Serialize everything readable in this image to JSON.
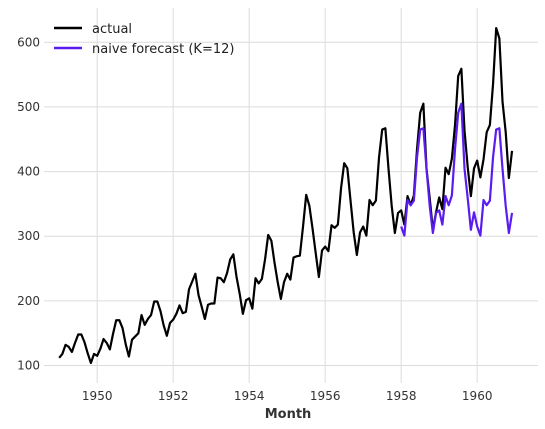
{
  "chart_data": {
    "type": "line",
    "xlabel": "Month",
    "ylabel": "",
    "grid": true,
    "legend_position": "top-left",
    "xlim": [
      1948.6,
      1961.6
    ],
    "ylim": [
      73,
      653
    ],
    "x_ticks": [
      1950,
      1952,
      1954,
      1956,
      1958,
      1960
    ],
    "y_ticks": [
      100,
      200,
      300,
      400,
      500,
      600
    ],
    "x_start": 1949.0,
    "x_step_years": 0.0833333,
    "series": [
      {
        "name": "actual",
        "color": "#000000",
        "start_index": 0,
        "values": [
          112,
          118,
          132,
          129,
          121,
          135,
          148,
          148,
          136,
          119,
          104,
          118,
          115,
          126,
          141,
          135,
          125,
          149,
          170,
          170,
          158,
          133,
          114,
          140,
          145,
          150,
          178,
          163,
          172,
          178,
          199,
          199,
          184,
          162,
          146,
          166,
          171,
          180,
          193,
          181,
          183,
          218,
          230,
          242,
          209,
          191,
          172,
          194,
          196,
          196,
          236,
          235,
          229,
          243,
          264,
          272,
          237,
          211,
          180,
          201,
          204,
          188,
          235,
          227,
          234,
          264,
          302,
          293,
          259,
          229,
          203,
          229,
          242,
          233,
          267,
          269,
          270,
          315,
          364,
          347,
          312,
          274,
          237,
          278,
          284,
          277,
          317,
          313,
          318,
          374,
          413,
          405,
          355,
          306,
          271,
          306,
          315,
          301,
          356,
          348,
          355,
          422,
          465,
          467,
          404,
          347,
          305,
          336,
          340,
          318,
          362,
          348,
          363,
          435,
          491,
          505,
          404,
          359,
          310,
          337,
          360,
          342,
          406,
          396,
          420,
          472,
          548,
          559,
          463,
          407,
          362,
          405,
          417,
          391,
          419,
          461,
          472,
          535,
          622,
          606,
          508,
          461,
          390,
          432
        ]
      },
      {
        "name": "naive forecast (K=12)",
        "color": "#5b1cf0",
        "start_index": 108,
        "values": [
          315,
          301,
          356,
          348,
          355,
          422,
          465,
          467,
          404,
          347,
          305,
          336,
          340,
          318,
          362,
          348,
          363,
          435,
          491,
          505,
          404,
          359,
          310,
          337,
          315,
          301,
          356,
          348,
          355,
          422,
          465,
          467,
          404,
          347,
          305,
          336
        ]
      }
    ]
  }
}
